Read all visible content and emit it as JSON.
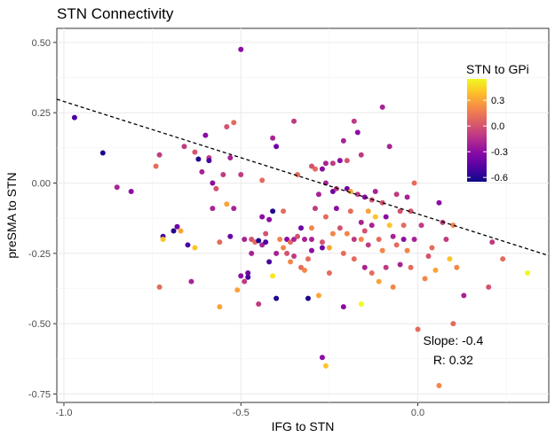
{
  "chart_data": {
    "type": "scatter",
    "title": "STN Connectivity",
    "xlabel": "IFG to STN",
    "ylabel": "preSMA to STN",
    "xlim": [
      -1.02,
      0.37
    ],
    "ylim": [
      -0.78,
      0.55
    ],
    "x_ticks": [
      -1.0,
      -0.5,
      0.0
    ],
    "x_tick_labels": [
      "-1.0",
      "-0.5",
      "0.0"
    ],
    "y_ticks": [
      0.5,
      0.25,
      0.0,
      -0.25,
      -0.5,
      -0.75
    ],
    "y_tick_labels": [
      "0.50",
      "0.25",
      "0.00",
      "-0.25",
      "-0.50",
      "-0.75"
    ],
    "grid": true,
    "legend": {
      "title": "STN to GPi",
      "position": "top-right",
      "range": [
        -0.65,
        0.55
      ],
      "ticks": [
        0.3,
        0.0,
        -0.3,
        -0.6
      ],
      "tick_labels": [
        "0.3",
        "0.0",
        "-0.3",
        "-0.6"
      ]
    },
    "colorscale": "plasma",
    "colorscale_stops": [
      "#0d0887",
      "#5302a3",
      "#8b0aa5",
      "#b83289",
      "#db5c68",
      "#f48849",
      "#febc2a",
      "#f0f921"
    ],
    "regression": {
      "slope": -0.4,
      "intercept": -0.11,
      "style": "dashed"
    },
    "annotations": [
      {
        "text": "Slope: -0.4",
        "x": 0.1,
        "y": -0.575
      },
      {
        "text": "R: 0.32",
        "x": 0.1,
        "y": -0.645
      }
    ],
    "points": [
      {
        "x": -0.97,
        "y": 0.233,
        "c": -0.5
      },
      {
        "x": -0.89,
        "y": 0.107,
        "c": -0.6
      },
      {
        "x": -0.85,
        "y": -0.015,
        "c": -0.2
      },
      {
        "x": -0.81,
        "y": -0.03,
        "c": -0.3
      },
      {
        "x": -0.74,
        "y": 0.06,
        "c": 0.1
      },
      {
        "x": -0.73,
        "y": 0.1,
        "c": -0.1
      },
      {
        "x": -0.73,
        "y": -0.37,
        "c": 0.1
      },
      {
        "x": -0.72,
        "y": -0.19,
        "c": -0.5
      },
      {
        "x": -0.72,
        "y": -0.2,
        "c": 0.4
      },
      {
        "x": -0.69,
        "y": -0.17,
        "c": -0.6
      },
      {
        "x": -0.68,
        "y": -0.155,
        "c": -0.4
      },
      {
        "x": -0.67,
        "y": -0.17,
        "c": 0.3
      },
      {
        "x": -0.66,
        "y": 0.13,
        "c": -0.1
      },
      {
        "x": -0.65,
        "y": -0.22,
        "c": -0.5
      },
      {
        "x": -0.64,
        "y": -0.35,
        "c": -0.2
      },
      {
        "x": -0.63,
        "y": -0.23,
        "c": 0.4
      },
      {
        "x": -0.63,
        "y": 0.11,
        "c": 0.0
      },
      {
        "x": -0.61,
        "y": 0.04,
        "c": -0.2
      },
      {
        "x": -0.6,
        "y": 0.17,
        "c": -0.3
      },
      {
        "x": -0.59,
        "y": 0.09,
        "c": -0.1
      },
      {
        "x": -0.59,
        "y": 0.08,
        "c": -0.5
      },
      {
        "x": -0.58,
        "y": -0.09,
        "c": -0.2
      },
      {
        "x": -0.58,
        "y": 0.0,
        "c": -0.3
      },
      {
        "x": -0.57,
        "y": -0.02,
        "c": 0.0
      },
      {
        "x": -0.56,
        "y": -0.21,
        "c": 0.1
      },
      {
        "x": -0.56,
        "y": -0.44,
        "c": 0.3
      },
      {
        "x": -0.55,
        "y": 0.03,
        "c": -0.1
      },
      {
        "x": -0.54,
        "y": -0.075,
        "c": 0.3
      },
      {
        "x": -0.54,
        "y": 0.2,
        "c": 0.0
      },
      {
        "x": -0.53,
        "y": 0.09,
        "c": -0.2
      },
      {
        "x": -0.53,
        "y": -0.19,
        "c": -0.4
      },
      {
        "x": -0.52,
        "y": 0.215,
        "c": 0.1
      },
      {
        "x": -0.52,
        "y": -0.09,
        "c": -0.2
      },
      {
        "x": -0.51,
        "y": -0.38,
        "c": 0.3
      },
      {
        "x": -0.5,
        "y": -0.33,
        "c": -0.3
      },
      {
        "x": -0.5,
        "y": 0.03,
        "c": -0.1
      },
      {
        "x": -0.49,
        "y": -0.2,
        "c": -0.2
      },
      {
        "x": -0.49,
        "y": -0.35,
        "c": -0.1
      },
      {
        "x": -0.48,
        "y": -0.32,
        "c": -0.4
      },
      {
        "x": -0.48,
        "y": -0.335,
        "c": -0.5
      },
      {
        "x": -0.47,
        "y": -0.25,
        "c": -0.2
      },
      {
        "x": -0.47,
        "y": -0.2,
        "c": 0.0
      },
      {
        "x": -0.46,
        "y": -0.21,
        "c": 0.1
      },
      {
        "x": -0.45,
        "y": -0.43,
        "c": -0.1
      },
      {
        "x": -0.45,
        "y": -0.205,
        "c": -0.6
      },
      {
        "x": -0.44,
        "y": -0.22,
        "c": -0.2
      },
      {
        "x": -0.44,
        "y": -0.12,
        "c": -0.3
      },
      {
        "x": -0.44,
        "y": 0.01,
        "c": 0.1
      },
      {
        "x": -0.43,
        "y": -0.18,
        "c": 0.0
      },
      {
        "x": -0.43,
        "y": -0.21,
        "c": -0.5
      },
      {
        "x": -0.42,
        "y": -0.13,
        "c": -0.3
      },
      {
        "x": -0.42,
        "y": -0.28,
        "c": -0.5
      },
      {
        "x": -0.41,
        "y": -0.33,
        "c": 0.5
      },
      {
        "x": -0.41,
        "y": 0.16,
        "c": -0.2
      },
      {
        "x": -0.41,
        "y": -0.1,
        "c": -0.6
      },
      {
        "x": -0.4,
        "y": -0.25,
        "c": -0.2
      },
      {
        "x": -0.4,
        "y": 0.13,
        "c": -0.4
      },
      {
        "x": -0.39,
        "y": -0.2,
        "c": 0.2
      },
      {
        "x": -0.38,
        "y": -0.1,
        "c": 0.1
      },
      {
        "x": -0.38,
        "y": -0.23,
        "c": 0.2
      },
      {
        "x": -0.37,
        "y": -0.2,
        "c": -0.3
      },
      {
        "x": -0.37,
        "y": -0.25,
        "c": 0.0
      },
      {
        "x": -0.36,
        "y": -0.21,
        "c": 0.1
      },
      {
        "x": -0.36,
        "y": -0.28,
        "c": 0.2
      },
      {
        "x": -0.35,
        "y": -0.2,
        "c": -0.2
      },
      {
        "x": -0.35,
        "y": -0.26,
        "c": -0.1
      },
      {
        "x": -0.34,
        "y": -0.19,
        "c": 0.0
      },
      {
        "x": -0.34,
        "y": 0.03,
        "c": 0.1
      },
      {
        "x": -0.33,
        "y": -0.3,
        "c": 0.1
      },
      {
        "x": -0.33,
        "y": -0.16,
        "c": -0.4
      },
      {
        "x": -0.32,
        "y": -0.2,
        "c": -0.2
      },
      {
        "x": -0.32,
        "y": -0.31,
        "c": 0.2
      },
      {
        "x": -0.31,
        "y": -0.41,
        "c": -0.6
      },
      {
        "x": -0.31,
        "y": -0.27,
        "c": 0.1
      },
      {
        "x": -0.3,
        "y": -0.2,
        "c": -0.2
      },
      {
        "x": -0.3,
        "y": -0.24,
        "c": -0.3
      },
      {
        "x": -0.3,
        "y": -0.16,
        "c": 0.2
      },
      {
        "x": -0.29,
        "y": 0.05,
        "c": 0.1
      },
      {
        "x": -0.29,
        "y": -0.09,
        "c": -0.1
      },
      {
        "x": -0.28,
        "y": -0.4,
        "c": 0.3
      },
      {
        "x": -0.28,
        "y": -0.04,
        "c": -0.2
      },
      {
        "x": -0.27,
        "y": -0.21,
        "c": 0.0
      },
      {
        "x": -0.27,
        "y": 0.05,
        "c": -0.3
      },
      {
        "x": -0.27,
        "y": -0.23,
        "c": -0.4
      },
      {
        "x": -0.26,
        "y": -0.12,
        "c": 0.1
      },
      {
        "x": -0.26,
        "y": 0.07,
        "c": -0.2
      },
      {
        "x": -0.26,
        "y": 0.0,
        "c": -0.2
      },
      {
        "x": -0.25,
        "y": -0.23,
        "c": 0.3
      },
      {
        "x": -0.25,
        "y": -0.32,
        "c": 0.1
      },
      {
        "x": -0.24,
        "y": -0.18,
        "c": 0.2
      },
      {
        "x": -0.24,
        "y": -0.03,
        "c": -0.4
      },
      {
        "x": -0.24,
        "y": 0.07,
        "c": -0.1
      },
      {
        "x": -0.23,
        "y": -0.09,
        "c": -0.3
      },
      {
        "x": -0.23,
        "y": -0.02,
        "c": -0.1
      },
      {
        "x": -0.22,
        "y": -0.16,
        "c": 0.0
      },
      {
        "x": -0.22,
        "y": 0.08,
        "c": -0.3
      },
      {
        "x": -0.21,
        "y": -0.44,
        "c": -0.3
      },
      {
        "x": -0.21,
        "y": -0.25,
        "c": 0.1
      },
      {
        "x": -0.21,
        "y": 0.15,
        "c": -0.2
      },
      {
        "x": -0.2,
        "y": -0.02,
        "c": -0.4
      },
      {
        "x": -0.2,
        "y": -0.18,
        "c": 0.2
      },
      {
        "x": -0.2,
        "y": 0.08,
        "c": 0.0
      },
      {
        "x": -0.19,
        "y": -0.03,
        "c": 0.3
      },
      {
        "x": -0.19,
        "y": -0.1,
        "c": 0.1
      },
      {
        "x": -0.18,
        "y": -0.2,
        "c": -0.1
      },
      {
        "x": -0.18,
        "y": 0.22,
        "c": -0.1
      },
      {
        "x": -0.18,
        "y": -0.27,
        "c": 0.1
      },
      {
        "x": -0.17,
        "y": 0.18,
        "c": -0.3
      },
      {
        "x": -0.17,
        "y": -0.04,
        "c": -0.1
      },
      {
        "x": -0.16,
        "y": 0.1,
        "c": -0.1
      },
      {
        "x": -0.16,
        "y": -0.14,
        "c": -0.2
      },
      {
        "x": -0.16,
        "y": -0.2,
        "c": 0.2
      },
      {
        "x": -0.15,
        "y": -0.3,
        "c": -0.2
      },
      {
        "x": -0.15,
        "y": -0.05,
        "c": -0.3
      },
      {
        "x": -0.15,
        "y": -0.17,
        "c": 0.0
      },
      {
        "x": -0.14,
        "y": -0.1,
        "c": 0.3
      },
      {
        "x": -0.14,
        "y": -0.22,
        "c": -0.1
      },
      {
        "x": -0.13,
        "y": -0.32,
        "c": 0.1
      },
      {
        "x": -0.13,
        "y": -0.06,
        "c": 0.0
      },
      {
        "x": -0.13,
        "y": -0.15,
        "c": -0.2
      },
      {
        "x": -0.12,
        "y": -0.12,
        "c": 0.4
      },
      {
        "x": -0.12,
        "y": -0.03,
        "c": -0.2
      },
      {
        "x": -0.11,
        "y": -0.2,
        "c": 0.1
      },
      {
        "x": -0.11,
        "y": -0.35,
        "c": 0.3
      },
      {
        "x": -0.1,
        "y": -0.07,
        "c": 0.0
      },
      {
        "x": -0.1,
        "y": -0.24,
        "c": 0.2
      },
      {
        "x": -0.09,
        "y": -0.12,
        "c": -0.3
      },
      {
        "x": -0.09,
        "y": -0.3,
        "c": -0.1
      },
      {
        "x": -0.08,
        "y": -0.15,
        "c": 0.4
      },
      {
        "x": -0.08,
        "y": 0.13,
        "c": -0.2
      },
      {
        "x": -0.07,
        "y": -0.19,
        "c": -0.2
      },
      {
        "x": -0.07,
        "y": -0.37,
        "c": 0.2
      },
      {
        "x": -0.06,
        "y": -0.22,
        "c": 0.1
      },
      {
        "x": -0.06,
        "y": -0.04,
        "c": -0.1
      },
      {
        "x": -0.05,
        "y": -0.1,
        "c": 0.0
      },
      {
        "x": -0.05,
        "y": -0.29,
        "c": -0.2
      },
      {
        "x": -0.04,
        "y": -0.2,
        "c": -0.3
      },
      {
        "x": -0.04,
        "y": -0.15,
        "c": 0.1
      },
      {
        "x": -0.03,
        "y": -0.24,
        "c": 0.2
      },
      {
        "x": -0.03,
        "y": -0.05,
        "c": -0.2
      },
      {
        "x": -0.02,
        "y": -0.3,
        "c": 0.1
      },
      {
        "x": -0.02,
        "y": -0.1,
        "c": 0.0
      },
      {
        "x": -0.01,
        "y": 0.0,
        "c": 0.1
      },
      {
        "x": -0.01,
        "y": -0.2,
        "c": -0.2
      },
      {
        "x": 0.0,
        "y": -0.52,
        "c": 0.1
      },
      {
        "x": 0.01,
        "y": -0.15,
        "c": -0.1
      },
      {
        "x": 0.02,
        "y": -0.34,
        "c": 0.2
      },
      {
        "x": 0.03,
        "y": -0.26,
        "c": 0.0
      },
      {
        "x": 0.04,
        "y": -0.23,
        "c": 0.1
      },
      {
        "x": 0.05,
        "y": -0.31,
        "c": 0.3
      },
      {
        "x": 0.06,
        "y": -0.72,
        "c": 0.2
      },
      {
        "x": 0.06,
        "y": -0.07,
        "c": -0.3
      },
      {
        "x": 0.07,
        "y": -0.14,
        "c": -0.1
      },
      {
        "x": 0.08,
        "y": -0.2,
        "c": -0.1
      },
      {
        "x": 0.09,
        "y": -0.27,
        "c": 0.4
      },
      {
        "x": 0.1,
        "y": -0.15,
        "c": 0.2
      },
      {
        "x": 0.13,
        "y": -0.4,
        "c": -0.2
      },
      {
        "x": 0.2,
        "y": -0.37,
        "c": 0.0
      },
      {
        "x": 0.21,
        "y": -0.21,
        "c": -0.1
      },
      {
        "x": 0.24,
        "y": -0.27,
        "c": 0.1
      },
      {
        "x": 0.31,
        "y": -0.32,
        "c": 0.6
      },
      {
        "x": -0.5,
        "y": 0.475,
        "c": -0.3
      },
      {
        "x": -0.35,
        "y": 0.22,
        "c": -0.1
      },
      {
        "x": -0.1,
        "y": 0.27,
        "c": -0.2
      },
      {
        "x": -0.62,
        "y": 0.085,
        "c": -0.6
      },
      {
        "x": -0.3,
        "y": 0.06,
        "c": 0.0
      },
      {
        "x": -0.26,
        "y": -0.65,
        "c": 0.4
      },
      {
        "x": -0.27,
        "y": -0.62,
        "c": -0.3
      },
      {
        "x": -0.4,
        "y": -0.41,
        "c": -0.6
      },
      {
        "x": -0.16,
        "y": -0.43,
        "c": 0.6
      },
      {
        "x": 0.1,
        "y": -0.5,
        "c": 0.1
      },
      {
        "x": 0.11,
        "y": -0.3,
        "c": 0.2
      }
    ]
  }
}
